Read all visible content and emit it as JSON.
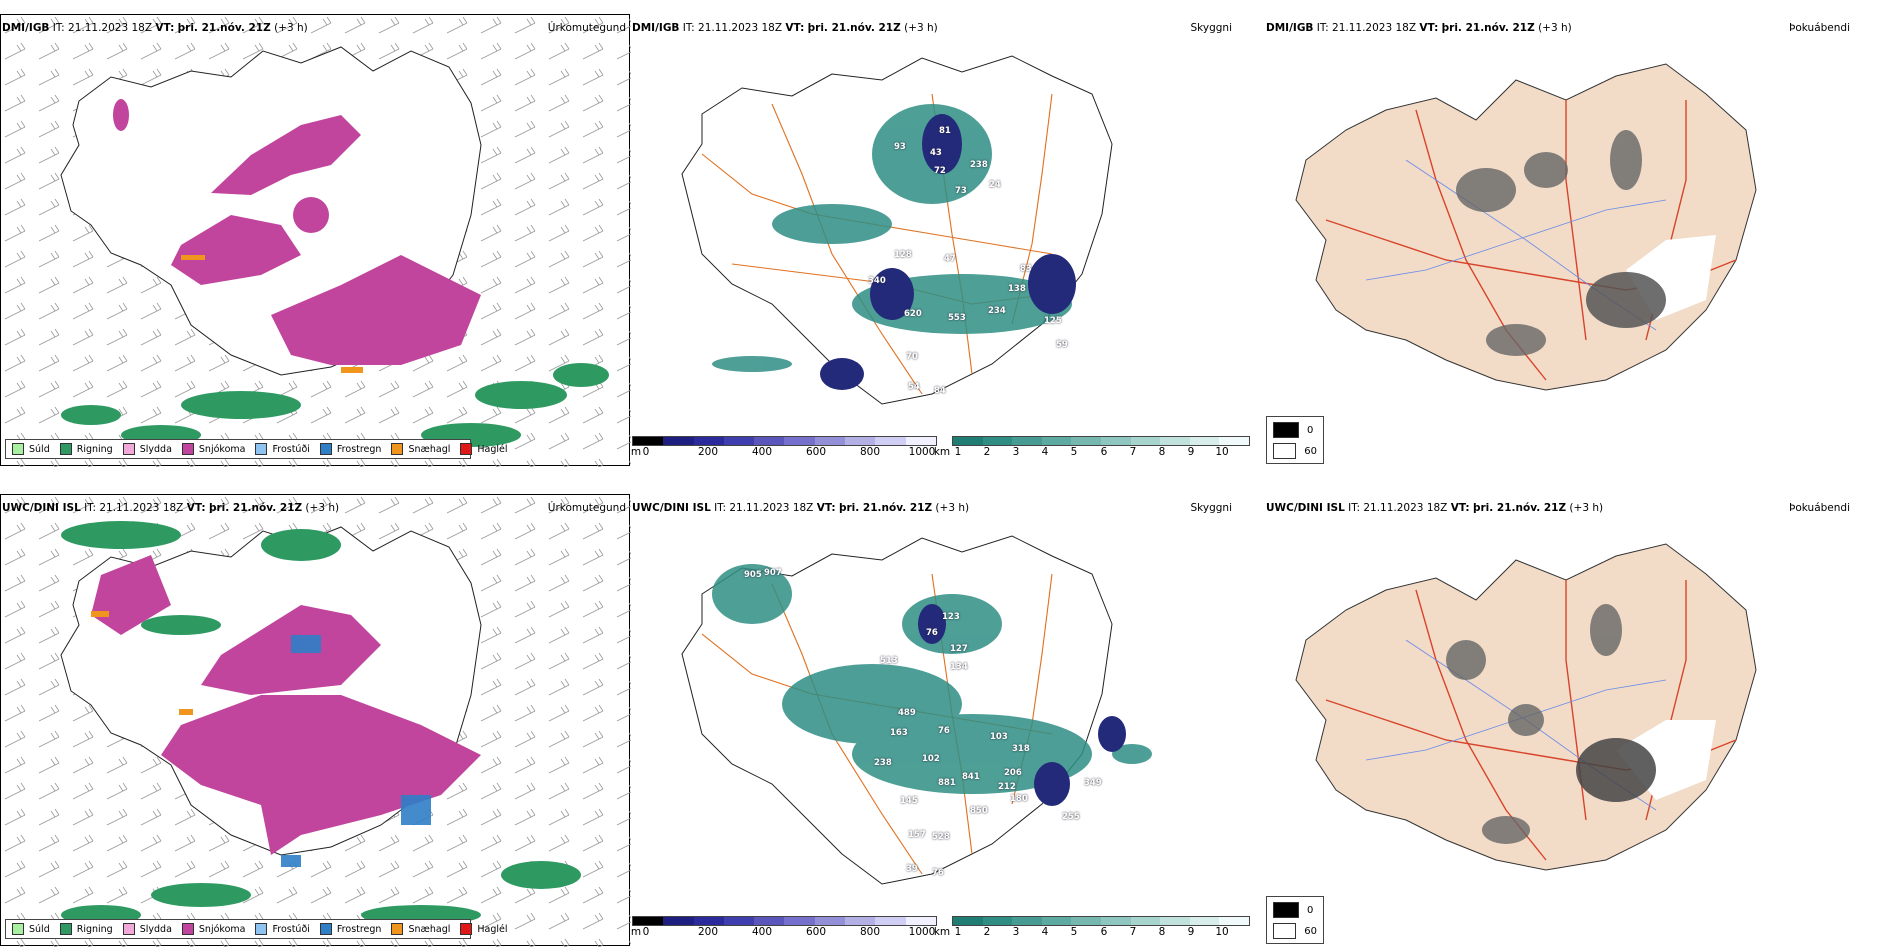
{
  "colors": {
    "sud": "#a8f0a0",
    "rain": "#2e9a62",
    "sleet": "#f2a8d8",
    "snow": "#c2459d",
    "frz_drizzle": "#8ec4f2",
    "frz_rain": "#2f7ec8",
    "snow_grains": "#f0961e",
    "hail": "#e01818",
    "land_ice": "#f2dcc8",
    "road": "#e07020",
    "road_red": "#d8442a",
    "river": "#6a8ae8",
    "vis_dark": "#242a7a",
    "cloud_teal": "#2f8e84"
  },
  "icons": [
    "wind-barb-icon"
  ],
  "rows": [
    {
      "model": "DMI/IGB",
      "it": "IT: 21.11.2023 18Z",
      "vt_label": "VT:",
      "vt_value": "þri. 21.nóv. 21Z",
      "lead": "(+3 h)",
      "titles": {
        "precip": "Úrkomutegund",
        "vis": "Skyggni",
        "fog": "Þokuábendi"
      },
      "vis_labels": [
        "93",
        "81",
        "5",
        "10",
        "132",
        "43",
        "72",
        "238",
        "73",
        "24",
        "78",
        "128",
        "47",
        "87",
        "340",
        "83",
        "138",
        "209",
        "620",
        "553",
        "234",
        "125",
        "188",
        "90",
        "342",
        "344",
        "59",
        "70",
        "32",
        "54",
        "84"
      ],
      "cloud_patches": []
    },
    {
      "model": "UWC/DINI ISL",
      "it": "IT: 21.11.2023 18Z",
      "vt_label": "VT:",
      "vt_value": "þri. 21.nóv. 21Z",
      "lead": "(+3 h)",
      "titles": {
        "precip": "Úrkomutegund",
        "vis": "Skyggni",
        "fog": "Þokuábendi"
      },
      "vis_labels": [
        "905",
        "907",
        "123",
        "76",
        "8",
        "127",
        "76",
        "134",
        "5",
        "513",
        "489",
        "163",
        "76",
        "103",
        "69",
        "318",
        "238",
        "102",
        "206",
        "212",
        "881",
        "841",
        "890",
        "180",
        "145",
        "238",
        "349",
        "850",
        "255",
        "157",
        "528",
        "39",
        "76"
      ]
    }
  ],
  "precip_legend": [
    "Súld",
    "Rigning",
    "Slydda",
    "Snjókoma",
    "Frostúði",
    "Frostregn",
    "Snæhagl",
    "Haglél"
  ],
  "vis_cbar": {
    "unit": "m",
    "ticks": [
      "0",
      "200",
      "400",
      "600",
      "800",
      "1000"
    ]
  },
  "cloud_cbar": {
    "unit": "km",
    "ticks": [
      "1",
      "2",
      "3",
      "4",
      "5",
      "6",
      "7",
      "8",
      "9",
      "10"
    ]
  },
  "fog_legend": [
    "0",
    "60"
  ]
}
